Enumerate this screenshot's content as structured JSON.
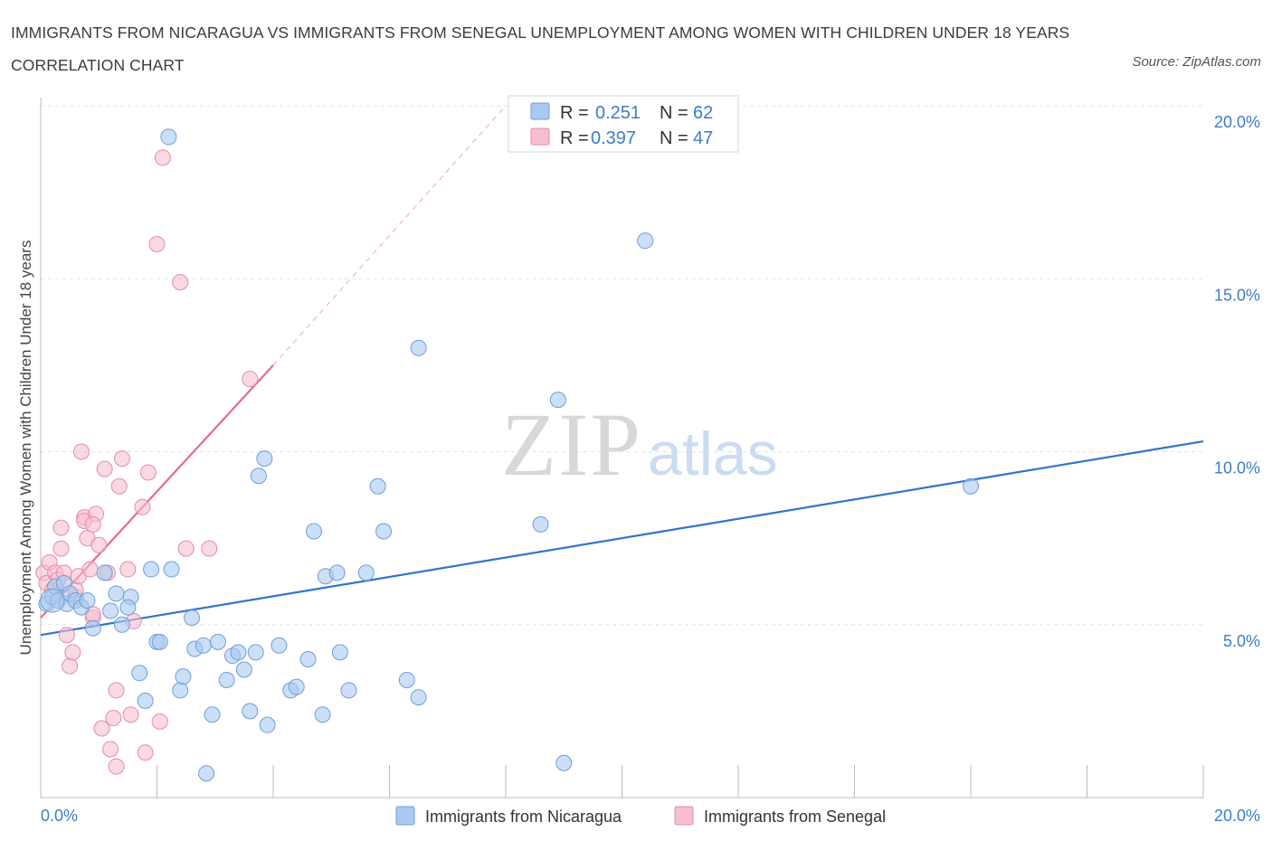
{
  "title": "IMMIGRANTS FROM NICARAGUA VS IMMIGRANTS FROM SENEGAL UNEMPLOYMENT AMONG WOMEN WITH CHILDREN UNDER 18 YEARS CORRELATION CHART",
  "source": "Source: ZipAtlas.com",
  "watermark": {
    "zip": "ZIP",
    "atlas": "atlas"
  },
  "colors": {
    "nicaragua_fill": "#a9c9f0",
    "nicaragua_stroke": "#6d9fd9",
    "nicaragua_line": "#2f74d0",
    "senegal_fill": "#f5bfd0",
    "senegal_stroke": "#e88aa8",
    "senegal_line": "#e46a92",
    "tick_text": "#3d7cc9",
    "grid": "#e2e2e2"
  },
  "stats_box": {
    "rows": [
      {
        "r_label": "R =",
        "r_value": "0.251",
        "n_label": "N =",
        "n_value": "62"
      },
      {
        "r_label": "R =",
        "r_value": "0.397",
        "n_label": "N =",
        "n_value": "47"
      }
    ]
  },
  "chart_data": {
    "type": "scatter",
    "title": "IMMIGRANTS FROM NICARAGUA VS IMMIGRANTS FROM SENEGAL UNEMPLOYMENT AMONG WOMEN WITH CHILDREN UNDER 18 YEARS CORRELATION CHART",
    "xlabel": "",
    "ylabel": "Unemployment Among Women with Children Under 18 years",
    "xlim": [
      0,
      20
    ],
    "ylim": [
      0,
      20
    ],
    "x_tick_labels": [
      "0.0%",
      "20.0%"
    ],
    "y_tick_labels": [
      "5.0%",
      "10.0%",
      "15.0%",
      "20.0%"
    ],
    "y_ticks": [
      5,
      10,
      15,
      20
    ],
    "grid": true,
    "legend_position": "bottom",
    "series": [
      {
        "name": "Immigrants from Nicaragua",
        "trend": {
          "x": [
            0,
            20
          ],
          "y": [
            4.7,
            10.3
          ]
        },
        "points": [
          [
            0.1,
            5.6
          ],
          [
            0.2,
            5.8
          ],
          [
            0.25,
            6.1
          ],
          [
            0.3,
            5.7
          ],
          [
            0.4,
            6.2
          ],
          [
            0.45,
            5.6
          ],
          [
            0.5,
            5.9
          ],
          [
            0.6,
            5.7
          ],
          [
            0.7,
            5.5
          ],
          [
            0.8,
            5.7
          ],
          [
            0.9,
            4.9
          ],
          [
            1.1,
            6.5
          ],
          [
            1.2,
            5.4
          ],
          [
            1.3,
            5.9
          ],
          [
            1.4,
            5.0
          ],
          [
            1.55,
            5.8
          ],
          [
            1.5,
            5.5
          ],
          [
            1.7,
            3.6
          ],
          [
            1.8,
            2.8
          ],
          [
            1.9,
            6.6
          ],
          [
            2.0,
            4.5
          ],
          [
            2.05,
            4.5
          ],
          [
            2.2,
            19.1
          ],
          [
            2.25,
            6.6
          ],
          [
            2.4,
            3.1
          ],
          [
            2.45,
            3.5
          ],
          [
            2.6,
            5.2
          ],
          [
            2.65,
            4.3
          ],
          [
            2.8,
            4.4
          ],
          [
            2.85,
            0.7
          ],
          [
            2.95,
            2.4
          ],
          [
            3.05,
            4.5
          ],
          [
            3.2,
            3.4
          ],
          [
            3.3,
            4.1
          ],
          [
            3.4,
            4.2
          ],
          [
            3.5,
            3.7
          ],
          [
            3.6,
            2.5
          ],
          [
            3.7,
            4.2
          ],
          [
            3.75,
            9.3
          ],
          [
            3.85,
            9.8
          ],
          [
            3.9,
            2.1
          ],
          [
            4.1,
            4.4
          ],
          [
            4.3,
            3.1
          ],
          [
            4.4,
            3.2
          ],
          [
            4.6,
            4.0
          ],
          [
            4.7,
            7.7
          ],
          [
            4.85,
            2.4
          ],
          [
            4.9,
            6.4
          ],
          [
            5.1,
            6.5
          ],
          [
            5.15,
            4.2
          ],
          [
            5.3,
            3.1
          ],
          [
            5.6,
            6.5
          ],
          [
            5.8,
            9.0
          ],
          [
            5.9,
            7.7
          ],
          [
            6.3,
            3.4
          ],
          [
            6.5,
            2.9
          ],
          [
            6.5,
            13.0
          ],
          [
            8.6,
            7.9
          ],
          [
            8.9,
            11.5
          ],
          [
            9.0,
            1.0
          ],
          [
            10.4,
            16.1
          ],
          [
            16.0,
            9.0
          ]
        ]
      },
      {
        "name": "Immigrants from Senegal",
        "trend": {
          "x": [
            0,
            4.0
          ],
          "y": [
            5.2,
            12.5
          ]
        },
        "trend_ext": {
          "x": [
            4.0,
            8.0
          ],
          "y": [
            12.5,
            20.0
          ]
        },
        "points": [
          [
            0.05,
            6.5
          ],
          [
            0.1,
            6.2
          ],
          [
            0.15,
            6.8
          ],
          [
            0.2,
            6.0
          ],
          [
            0.25,
            6.5
          ],
          [
            0.3,
            6.3
          ],
          [
            0.35,
            7.8
          ],
          [
            0.4,
            6.5
          ],
          [
            0.35,
            7.2
          ],
          [
            0.45,
            4.7
          ],
          [
            0.5,
            3.8
          ],
          [
            0.55,
            4.2
          ],
          [
            0.6,
            5.8
          ],
          [
            0.6,
            6.0
          ],
          [
            0.65,
            6.4
          ],
          [
            0.7,
            10.0
          ],
          [
            0.75,
            8.1
          ],
          [
            0.8,
            7.5
          ],
          [
            0.85,
            6.6
          ],
          [
            0.9,
            5.2
          ],
          [
            0.9,
            5.3
          ],
          [
            0.75,
            8.0
          ],
          [
            0.95,
            8.2
          ],
          [
            0.9,
            7.9
          ],
          [
            1.0,
            7.3
          ],
          [
            1.05,
            2.0
          ],
          [
            1.1,
            9.5
          ],
          [
            1.15,
            6.5
          ],
          [
            1.2,
            1.4
          ],
          [
            1.25,
            2.3
          ],
          [
            1.3,
            0.9
          ],
          [
            1.3,
            3.1
          ],
          [
            1.35,
            9.0
          ],
          [
            1.4,
            9.8
          ],
          [
            1.5,
            6.6
          ],
          [
            1.6,
            5.1
          ],
          [
            1.55,
            2.4
          ],
          [
            1.75,
            8.4
          ],
          [
            1.8,
            1.3
          ],
          [
            1.85,
            9.4
          ],
          [
            2.0,
            16.0
          ],
          [
            2.1,
            18.5
          ],
          [
            2.05,
            2.2
          ],
          [
            2.4,
            14.9
          ],
          [
            2.5,
            7.2
          ],
          [
            2.9,
            7.2
          ],
          [
            3.6,
            12.1
          ]
        ]
      }
    ]
  },
  "legend": {
    "items": [
      {
        "label": "Immigrants from Nicaragua"
      },
      {
        "label": "Immigrants from Senegal"
      }
    ]
  }
}
